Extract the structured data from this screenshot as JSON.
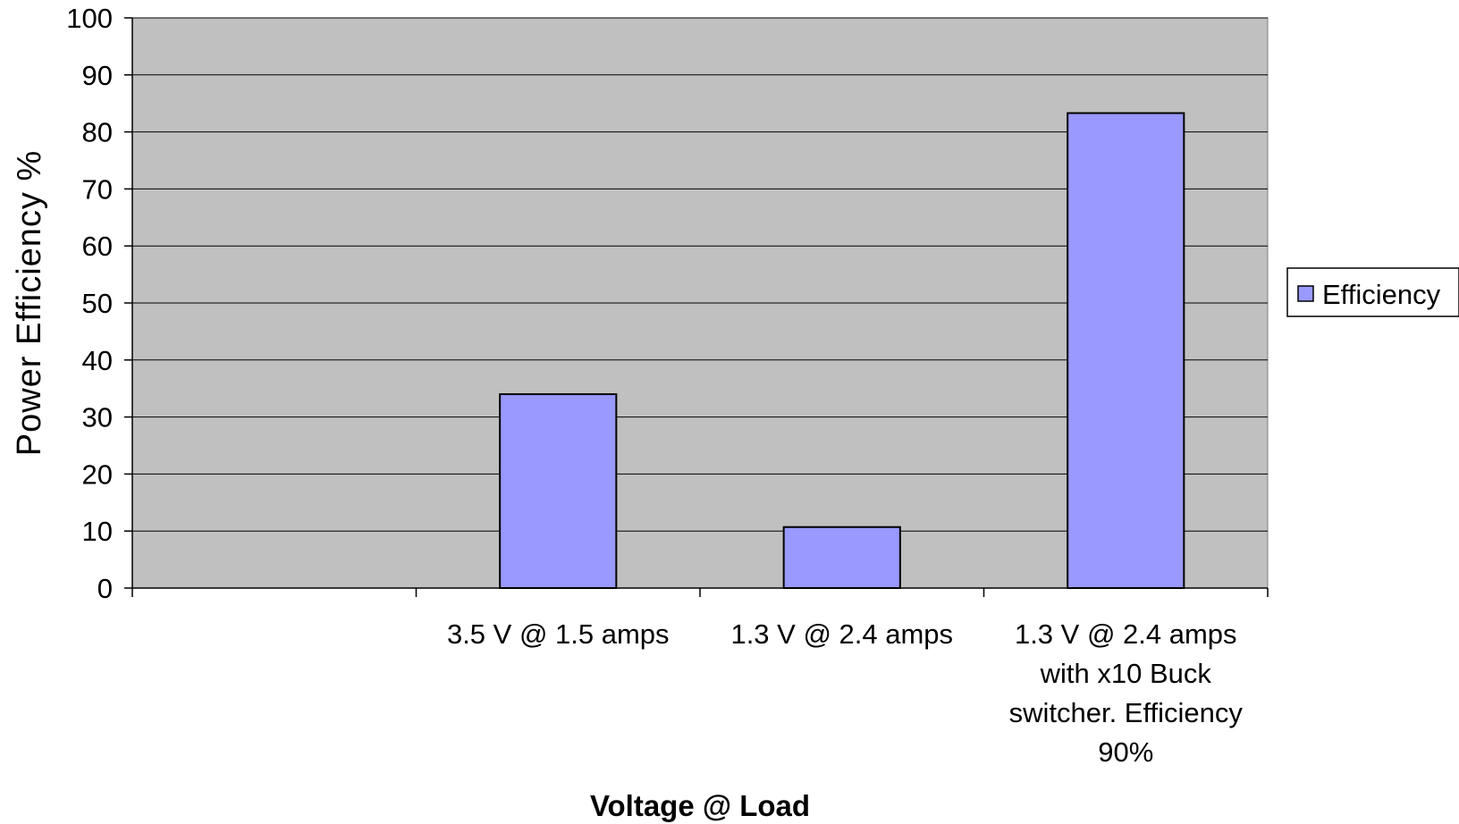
{
  "chart_data": {
    "type": "bar",
    "categories": [
      "",
      "3.5 V @ 1.5 amps",
      "1.3 V @ 2.4 amps",
      "1.3 V @ 2.4 amps with x10 Buck switcher. Efficiency 90%"
    ],
    "category_lines": [
      [],
      [
        "3.5 V @ 1.5 amps"
      ],
      [
        "1.3 V @ 2.4 amps"
      ],
      [
        "1.3 V @ 2.4 amps",
        "with x10 Buck",
        "switcher. Efficiency",
        "90%"
      ]
    ],
    "series": [
      {
        "name": "Efficiency",
        "values": [
          null,
          34,
          10.7,
          83.3
        ]
      }
    ],
    "ylim": [
      0,
      100
    ],
    "yticks": [
      "0",
      "10",
      "20",
      "30",
      "40",
      "50",
      "60",
      "70",
      "80",
      "90",
      "100"
    ],
    "xlabel": "Voltage @ Load",
    "ylabel": "Power Efficiency %",
    "legend": "right",
    "grid": true,
    "colors": {
      "plot_background": "#c0c0c0",
      "bar_fill": "#9999ff",
      "bar_stroke": "#000000",
      "gridline": "#000000"
    }
  }
}
